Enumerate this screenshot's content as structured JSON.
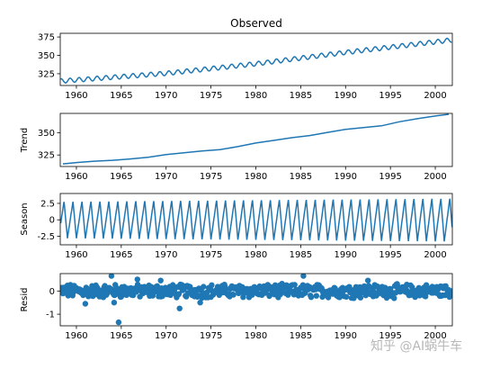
{
  "chart_data": [
    {
      "type": "line",
      "title": "Observed",
      "ylabel": "",
      "xlim": [
        1958.2,
        2001.9
      ],
      "ylim": [
        309,
        380
      ],
      "xticks": [
        1960,
        1965,
        1970,
        1975,
        1980,
        1985,
        1990,
        1995,
        2000
      ],
      "yticks": [
        325,
        350,
        375
      ],
      "series": [
        {
          "color": "#1f77b4",
          "model": "trend_plus_seasonal",
          "x_start": 1958.25,
          "x_end": 2001.9,
          "trend_at": {
            "1958.25": 315.0,
            "1970": 325.5,
            "1980": 338.5,
            "1990": 354.0,
            "2001.9": 371.0
          },
          "seasonal_amplitude": 3.0
        }
      ]
    },
    {
      "type": "line",
      "title": "",
      "ylabel": "Trend",
      "xlim": [
        1958.2,
        2001.9
      ],
      "ylim": [
        312,
        372
      ],
      "xticks": [
        1960,
        1965,
        1970,
        1975,
        1980,
        1985,
        1990,
        1995,
        2000
      ],
      "yticks": [
        325,
        350
      ],
      "series": [
        {
          "color": "#1f77b4",
          "x": [
            1958.5,
            1960,
            1962,
            1964,
            1966,
            1968,
            1970,
            1972,
            1974,
            1976,
            1978,
            1980,
            1982,
            1984,
            1986,
            1988,
            1990,
            1992,
            1994,
            1996,
            1998,
            2000,
            2001.5
          ],
          "y": [
            315.0,
            316.5,
            318.0,
            319.0,
            320.5,
            322.5,
            325.5,
            327.5,
            329.5,
            331.0,
            334.5,
            338.5,
            341.5,
            344.5,
            347.0,
            350.5,
            354.0,
            356.0,
            358.0,
            362.5,
            366.0,
            369.0,
            371.0
          ]
        }
      ]
    },
    {
      "type": "line",
      "title": "",
      "ylabel": "Season",
      "xlim": [
        1958.2,
        2001.9
      ],
      "ylim": [
        -3.8,
        4.0
      ],
      "xticks": [
        1960,
        1965,
        1970,
        1975,
        1980,
        1985,
        1990,
        1995,
        2000
      ],
      "yticks": [
        -2.5,
        0.0,
        2.5
      ],
      "series": [
        {
          "color": "#1f77b4",
          "model": "annual_cycle",
          "x_start": 1958.25,
          "x_end": 2001.9,
          "amplitude_start": 2.8,
          "amplitude_end": 3.3
        }
      ]
    },
    {
      "type": "scatter",
      "title": "",
      "ylabel": "Resid",
      "xlim": [
        1958.2,
        2001.9
      ],
      "ylim": [
        -1.5,
        0.75
      ],
      "xticks": [
        1960,
        1965,
        1970,
        1975,
        1980,
        1985,
        1990,
        1995,
        2000
      ],
      "yticks": [
        -1,
        0
      ],
      "series": [
        {
          "color": "#1f77b4",
          "model": "monthly_residuals",
          "x_start": 1958.25,
          "x_end": 2001.9,
          "spread": 0.25,
          "outliers": [
            {
              "x": 1964.7,
              "y": -1.35
            },
            {
              "x": 1963.9,
              "y": 0.65
            },
            {
              "x": 1985.3,
              "y": 0.65
            },
            {
              "x": 1971.5,
              "y": -0.75
            },
            {
              "x": 1973.8,
              "y": -0.5
            },
            {
              "x": 1964.2,
              "y": -0.5
            },
            {
              "x": 1969.4,
              "y": 0.45
            },
            {
              "x": 1966.8,
              "y": 0.5
            },
            {
              "x": 1992.5,
              "y": 0.45
            },
            {
              "x": 1961.0,
              "y": -0.55
            }
          ]
        }
      ]
    }
  ],
  "watermark": "知乎 @AI蜗牛车"
}
